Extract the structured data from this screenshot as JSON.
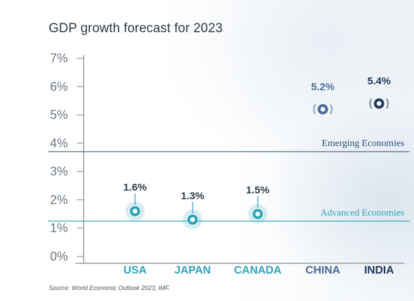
{
  "chart_data": {
    "type": "scatter",
    "title": "GDP growth forecast for 2023",
    "categories": [
      "USA",
      "JAPAN",
      "CANADA",
      "CHINA",
      "INDIA"
    ],
    "values": [
      1.6,
      1.3,
      1.5,
      5.2,
      5.4
    ],
    "data_labels": [
      "1.6%",
      "1.3%",
      "1.5%",
      "5.2%",
      "5.4%"
    ],
    "groups": [
      "advanced",
      "advanced",
      "advanced",
      "emerging",
      "emerging"
    ],
    "ylim": [
      0,
      7
    ],
    "yticks": [
      0,
      1,
      2,
      3,
      4,
      5,
      6,
      7
    ],
    "ytick_labels": [
      "0%",
      "1%",
      "2%",
      "3%",
      "4%",
      "5%",
      "6%",
      "7%"
    ],
    "reference_lines": [
      {
        "name": "Emerging Economies",
        "value": 3.7,
        "color": "#2d4f7a"
      },
      {
        "name": "Advanced Economies",
        "value": 1.25,
        "color": "#2ea3b8"
      }
    ],
    "colors": {
      "advanced": "#2ea3b8",
      "china": "#4a6a9a",
      "india": "#23365e"
    }
  },
  "source": "Source: World Economic Outlook 2023, IMF."
}
